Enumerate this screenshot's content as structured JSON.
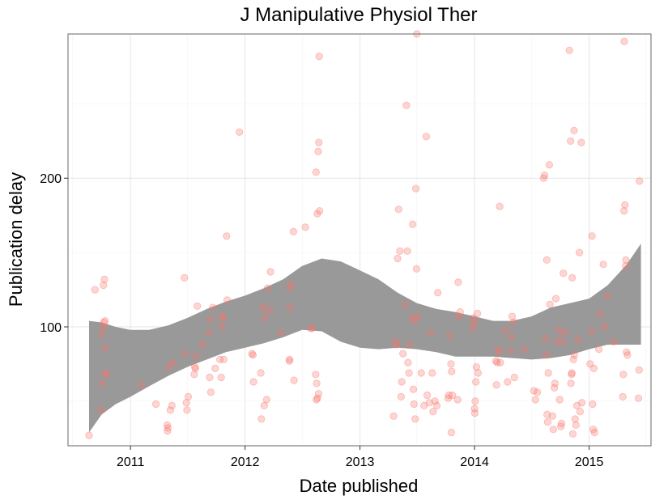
{
  "chart_data": {
    "type": "scatter",
    "title": "J Manipulative Physiol Ther",
    "xlabel": "Date published",
    "ylabel": "Publication delay",
    "x_tick_labels": [
      "2011",
      "2012",
      "2013",
      "2014",
      "2015"
    ],
    "y_tick_labels": [
      "100",
      "200"
    ],
    "xlim": [
      "2010-06-16",
      "2015-07-17"
    ],
    "ylim": [
      20,
      297
    ],
    "grid": true,
    "point_color": "#F8766D",
    "band_color": "#999999",
    "series": [
      {
        "values": [
          {
            "x": "2010-08-22",
            "y": 27
          },
          {
            "x": "2010-09-10",
            "y": 125
          },
          {
            "x": "2010-09-30",
            "y": 44
          },
          {
            "x": "2010-10-02",
            "y": 95
          },
          {
            "x": "2010-10-04",
            "y": 62
          },
          {
            "x": "2010-10-06",
            "y": 100
          },
          {
            "x": "2010-10-07",
            "y": 128
          },
          {
            "x": "2010-10-08",
            "y": 103
          },
          {
            "x": "2010-10-10",
            "y": 132
          },
          {
            "x": "2010-10-12",
            "y": 104
          },
          {
            "x": "2010-10-12",
            "y": 86
          },
          {
            "x": "2010-10-14",
            "y": 69
          },
          {
            "x": "2010-10-15",
            "y": 68
          },
          {
            "x": "2011-02-05",
            "y": 61
          },
          {
            "x": "2011-03-23",
            "y": 48
          },
          {
            "x": "2011-04-28",
            "y": 34
          },
          {
            "x": "2011-04-29",
            "y": 30
          },
          {
            "x": "2011-04-30",
            "y": 32
          },
          {
            "x": "2011-05-03",
            "y": 73
          },
          {
            "x": "2011-05-08",
            "y": 44
          },
          {
            "x": "2011-05-13",
            "y": 47
          },
          {
            "x": "2011-05-16",
            "y": 76
          },
          {
            "x": "2011-06-22",
            "y": 133
          },
          {
            "x": "2011-06-25",
            "y": 82
          },
          {
            "x": "2011-06-28",
            "y": 49
          },
          {
            "x": "2011-06-30",
            "y": 44
          },
          {
            "x": "2011-07-04",
            "y": 53
          },
          {
            "x": "2011-07-23",
            "y": 68
          },
          {
            "x": "2011-07-25",
            "y": 73
          },
          {
            "x": "2011-07-27",
            "y": 72
          },
          {
            "x": "2011-07-29",
            "y": 80
          },
          {
            "x": "2011-08-02",
            "y": 114
          },
          {
            "x": "2011-08-18",
            "y": 88
          },
          {
            "x": "2011-09-07",
            "y": 96
          },
          {
            "x": "2011-09-10",
            "y": 66
          },
          {
            "x": "2011-09-12",
            "y": 105
          },
          {
            "x": "2011-09-14",
            "y": 56
          },
          {
            "x": "2011-09-20",
            "y": 113
          },
          {
            "x": "2011-09-28",
            "y": 72
          },
          {
            "x": "2011-10-13",
            "y": 78
          },
          {
            "x": "2011-10-17",
            "y": 66
          },
          {
            "x": "2011-10-18",
            "y": 100
          },
          {
            "x": "2011-10-20",
            "y": 107
          },
          {
            "x": "2011-10-22",
            "y": 106
          },
          {
            "x": "2011-10-25",
            "y": 78
          },
          {
            "x": "2011-11-03",
            "y": 161
          },
          {
            "x": "2011-11-05",
            "y": 118
          },
          {
            "x": "2011-12-14",
            "y": 231
          },
          {
            "x": "2012-01-23",
            "y": 82
          },
          {
            "x": "2012-01-26",
            "y": 81
          },
          {
            "x": "2012-01-28",
            "y": 63
          },
          {
            "x": "2012-02-20",
            "y": 69
          },
          {
            "x": "2012-02-22",
            "y": 38
          },
          {
            "x": "2012-02-27",
            "y": 113
          },
          {
            "x": "2012-03-02",
            "y": 47
          },
          {
            "x": "2012-03-04",
            "y": 106
          },
          {
            "x": "2012-03-10",
            "y": 51
          },
          {
            "x": "2012-03-13",
            "y": 126
          },
          {
            "x": "2012-03-19",
            "y": 111
          },
          {
            "x": "2012-03-22",
            "y": 137
          },
          {
            "x": "2012-04-24",
            "y": 96
          },
          {
            "x": "2012-05-21",
            "y": 77
          },
          {
            "x": "2012-05-22",
            "y": 78
          },
          {
            "x": "2012-05-23",
            "y": 113
          },
          {
            "x": "2012-05-24",
            "y": 126
          },
          {
            "x": "2012-05-25",
            "y": 129
          },
          {
            "x": "2012-06-03",
            "y": 164
          },
          {
            "x": "2012-06-05",
            "y": 64
          },
          {
            "x": "2012-07-11",
            "y": 167
          },
          {
            "x": "2012-07-29",
            "y": 99
          },
          {
            "x": "2012-08-01",
            "y": 99
          },
          {
            "x": "2012-08-13",
            "y": 68
          },
          {
            "x": "2012-08-14",
            "y": 204
          },
          {
            "x": "2012-08-15",
            "y": 51
          },
          {
            "x": "2012-08-16",
            "y": 62
          },
          {
            "x": "2012-08-18",
            "y": 176
          },
          {
            "x": "2012-08-19",
            "y": 52
          },
          {
            "x": "2012-08-21",
            "y": 218
          },
          {
            "x": "2012-08-22",
            "y": 55
          },
          {
            "x": "2012-08-23",
            "y": 224
          },
          {
            "x": "2012-08-24",
            "y": 282
          },
          {
            "x": "2012-08-25",
            "y": 178
          },
          {
            "x": "2013-04-18",
            "y": 40
          },
          {
            "x": "2013-04-24",
            "y": 90
          },
          {
            "x": "2013-04-28",
            "y": 88
          },
          {
            "x": "2013-05-01",
            "y": 146
          },
          {
            "x": "2013-05-04",
            "y": 179
          },
          {
            "x": "2013-05-08",
            "y": 151
          },
          {
            "x": "2013-05-12",
            "y": 53
          },
          {
            "x": "2013-05-14",
            "y": 63
          },
          {
            "x": "2013-05-18",
            "y": 82
          },
          {
            "x": "2013-05-25",
            "y": 115
          },
          {
            "x": "2013-05-29",
            "y": 249
          },
          {
            "x": "2013-06-01",
            "y": 151
          },
          {
            "x": "2013-06-03",
            "y": 76
          },
          {
            "x": "2013-06-06",
            "y": 69
          },
          {
            "x": "2013-06-08",
            "y": 88
          },
          {
            "x": "2013-06-16",
            "y": 106
          },
          {
            "x": "2013-06-18",
            "y": 169
          },
          {
            "x": "2013-06-20",
            "y": 58
          },
          {
            "x": "2013-06-22",
            "y": 48
          },
          {
            "x": "2013-06-24",
            "y": 104
          },
          {
            "x": "2013-06-26",
            "y": 38
          },
          {
            "x": "2013-06-28",
            "y": 193
          },
          {
            "x": "2013-06-30",
            "y": 139
          },
          {
            "x": "2013-07-01",
            "y": 297
          },
          {
            "x": "2013-07-04",
            "y": 107
          },
          {
            "x": "2013-07-15",
            "y": 69
          },
          {
            "x": "2013-07-24",
            "y": 47
          },
          {
            "x": "2013-07-31",
            "y": 228
          },
          {
            "x": "2013-08-03",
            "y": 54
          },
          {
            "x": "2013-08-10",
            "y": 49
          },
          {
            "x": "2013-08-14",
            "y": 96
          },
          {
            "x": "2013-08-19",
            "y": 69
          },
          {
            "x": "2013-08-22",
            "y": 43
          },
          {
            "x": "2013-08-28",
            "y": 50
          },
          {
            "x": "2013-09-03",
            "y": 47
          },
          {
            "x": "2013-09-06",
            "y": 123
          },
          {
            "x": "2013-10-09",
            "y": 52
          },
          {
            "x": "2013-10-11",
            "y": 54
          },
          {
            "x": "2013-10-15",
            "y": 94
          },
          {
            "x": "2013-10-18",
            "y": 75
          },
          {
            "x": "2013-10-19",
            "y": 29
          },
          {
            "x": "2013-10-20",
            "y": 70
          },
          {
            "x": "2013-10-22",
            "y": 54
          },
          {
            "x": "2013-11-08",
            "y": 51
          },
          {
            "x": "2013-11-10",
            "y": 130
          },
          {
            "x": "2013-11-12",
            "y": 107
          },
          {
            "x": "2013-11-16",
            "y": 110
          },
          {
            "x": "2013-12-26",
            "y": 99
          },
          {
            "x": "2013-12-28",
            "y": 106
          },
          {
            "x": "2013-12-30",
            "y": 103
          },
          {
            "x": "2014-01-01",
            "y": 45
          },
          {
            "x": "2014-01-02",
            "y": 42
          },
          {
            "x": "2014-01-03",
            "y": 50
          },
          {
            "x": "2014-01-05",
            "y": 63
          },
          {
            "x": "2014-01-07",
            "y": 73
          },
          {
            "x": "2014-01-10",
            "y": 109
          },
          {
            "x": "2014-01-12",
            "y": 69
          },
          {
            "x": "2014-03-10",
            "y": 77
          },
          {
            "x": "2014-03-12",
            "y": 61
          },
          {
            "x": "2014-03-14",
            "y": 76
          },
          {
            "x": "2014-03-17",
            "y": 85
          },
          {
            "x": "2014-03-20",
            "y": 83
          },
          {
            "x": "2014-03-22",
            "y": 181
          },
          {
            "x": "2014-03-24",
            "y": 76
          },
          {
            "x": "2014-04-10",
            "y": 98
          },
          {
            "x": "2014-04-16",
            "y": 63
          },
          {
            "x": "2014-04-25",
            "y": 84
          },
          {
            "x": "2014-04-28",
            "y": 93
          },
          {
            "x": "2014-05-01",
            "y": 107
          },
          {
            "x": "2014-05-05",
            "y": 103
          },
          {
            "x": "2014-05-08",
            "y": 66
          },
          {
            "x": "2014-06-08",
            "y": 85
          },
          {
            "x": "2014-07-09",
            "y": 57
          },
          {
            "x": "2014-07-14",
            "y": 51
          },
          {
            "x": "2014-07-20",
            "y": 56
          },
          {
            "x": "2014-08-09",
            "y": 200
          },
          {
            "x": "2014-08-12",
            "y": 202
          },
          {
            "x": "2014-08-15",
            "y": 92
          },
          {
            "x": "2014-08-18",
            "y": 81
          },
          {
            "x": "2014-08-19",
            "y": 145
          },
          {
            "x": "2014-08-20",
            "y": 41
          },
          {
            "x": "2014-08-22",
            "y": 36
          },
          {
            "x": "2014-08-24",
            "y": 69
          },
          {
            "x": "2014-08-27",
            "y": 209
          },
          {
            "x": "2014-08-29",
            "y": 115
          },
          {
            "x": "2014-09-06",
            "y": 40
          },
          {
            "x": "2014-09-09",
            "y": 31
          },
          {
            "x": "2014-09-12",
            "y": 59
          },
          {
            "x": "2014-09-14",
            "y": 62
          },
          {
            "x": "2014-09-17",
            "y": 119
          },
          {
            "x": "2014-09-22",
            "y": 90
          },
          {
            "x": "2014-09-26",
            "y": 98
          },
          {
            "x": "2014-09-29",
            "y": 51
          },
          {
            "x": "2014-10-03",
            "y": 33
          },
          {
            "x": "2014-10-05",
            "y": 35
          },
          {
            "x": "2014-10-08",
            "y": 90
          },
          {
            "x": "2014-10-11",
            "y": 136
          },
          {
            "x": "2014-10-15",
            "y": 96
          },
          {
            "x": "2014-10-30",
            "y": 286
          },
          {
            "x": "2014-11-03",
            "y": 225
          },
          {
            "x": "2014-11-04",
            "y": 62
          },
          {
            "x": "2014-11-06",
            "y": 68
          },
          {
            "x": "2014-11-07",
            "y": 69
          },
          {
            "x": "2014-11-08",
            "y": 133
          },
          {
            "x": "2014-11-10",
            "y": 28
          },
          {
            "x": "2014-11-12",
            "y": 78
          },
          {
            "x": "2014-11-14",
            "y": 232
          },
          {
            "x": "2014-11-15",
            "y": 81
          },
          {
            "x": "2014-11-17",
            "y": 38
          },
          {
            "x": "2014-11-20",
            "y": 34
          },
          {
            "x": "2014-11-23",
            "y": 47
          },
          {
            "x": "2014-11-26",
            "y": 91
          },
          {
            "x": "2014-12-01",
            "y": 150
          },
          {
            "x": "2014-12-03",
            "y": 43
          },
          {
            "x": "2014-12-07",
            "y": 224
          },
          {
            "x": "2014-12-09",
            "y": 49
          },
          {
            "x": "2015-01-04",
            "y": 75
          },
          {
            "x": "2015-01-08",
            "y": 97
          },
          {
            "x": "2015-01-10",
            "y": 161
          },
          {
            "x": "2015-01-12",
            "y": 48
          },
          {
            "x": "2015-01-14",
            "y": 31
          },
          {
            "x": "2015-01-16",
            "y": 72
          },
          {
            "x": "2015-01-18",
            "y": 29
          },
          {
            "x": "2015-02-01",
            "y": 85
          },
          {
            "x": "2015-02-05",
            "y": 109
          },
          {
            "x": "2015-02-15",
            "y": 142
          },
          {
            "x": "2015-02-18",
            "y": 100
          },
          {
            "x": "2015-03-01",
            "y": 121
          },
          {
            "x": "2015-03-20",
            "y": 90
          },
          {
            "x": "2015-04-18",
            "y": 53
          },
          {
            "x": "2015-04-20",
            "y": 68
          },
          {
            "x": "2015-04-22",
            "y": 178
          },
          {
            "x": "2015-04-23",
            "y": 292
          },
          {
            "x": "2015-04-25",
            "y": 182
          },
          {
            "x": "2015-04-27",
            "y": 141
          },
          {
            "x": "2015-04-28",
            "y": 145
          },
          {
            "x": "2015-04-30",
            "y": 83
          },
          {
            "x": "2015-05-03",
            "y": 81
          },
          {
            "x": "2015-06-07",
            "y": 52
          },
          {
            "x": "2015-06-09",
            "y": 71
          },
          {
            "x": "2015-06-10",
            "y": 198
          }
        ]
      }
    ],
    "smooth_band": {
      "x": [
        "2010-08-22",
        "2010-10-01",
        "2010-11-15",
        "2011-01-01",
        "2011-03-01",
        "2011-05-01",
        "2011-07-01",
        "2011-09-01",
        "2011-11-01",
        "2012-01-01",
        "2012-03-01",
        "2012-05-01",
        "2012-07-01",
        "2012-09-01",
        "2012-11-01",
        "2013-01-01",
        "2013-03-01",
        "2013-05-01",
        "2013-07-01",
        "2013-09-01",
        "2013-11-01",
        "2014-01-01",
        "2014-03-01",
        "2014-05-01",
        "2014-07-01",
        "2014-09-01",
        "2014-11-01",
        "2015-01-01",
        "2015-03-01",
        "2015-05-01",
        "2015-06-15"
      ],
      "upper": [
        104,
        103,
        100,
        98,
        98,
        101,
        106,
        112,
        117,
        121,
        126,
        132,
        141,
        146,
        144,
        138,
        132,
        123,
        116,
        112,
        110,
        107,
        104,
        104,
        107,
        113,
        116,
        119,
        128,
        142,
        156
      ],
      "lower": [
        29,
        41,
        48,
        53,
        60,
        67,
        73,
        78,
        83,
        86,
        89,
        93,
        98,
        97,
        90,
        86,
        85,
        86,
        85,
        83,
        80,
        80,
        80,
        79,
        78,
        79,
        81,
        85,
        88,
        88,
        88
      ]
    }
  }
}
